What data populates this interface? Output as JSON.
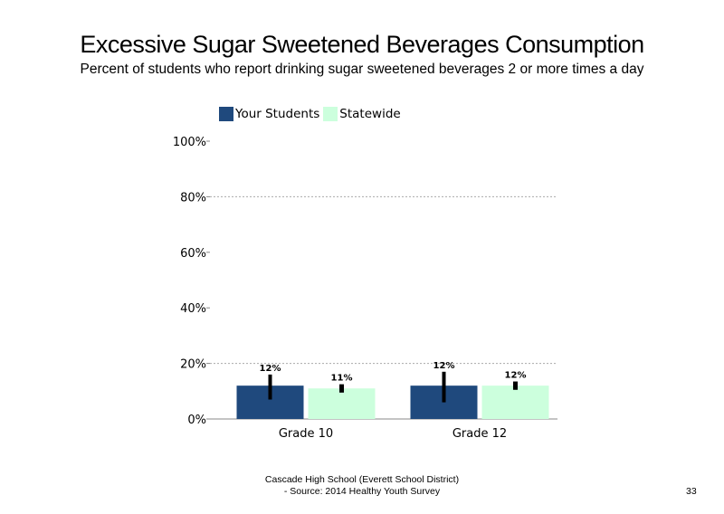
{
  "slide": {
    "title": "Excessive Sugar Sweetened Beverages Consumption",
    "subtitle": "Percent of students who report drinking sugar sweetened beverages 2 or more times a day",
    "footer_line1": "Cascade High School (Everett School District)",
    "footer_line2": "- Source: 2014 Healthy Youth Survey",
    "page_number": "33"
  },
  "chart_data": {
    "type": "bar",
    "categories": [
      "Grade 10",
      "Grade 12"
    ],
    "series": [
      {
        "name": "Your Students",
        "color": "#1f497d",
        "values": [
          12,
          12
        ],
        "labels": [
          "12%",
          "12%"
        ],
        "err_low": [
          7,
          6
        ],
        "err_high": [
          16,
          17
        ]
      },
      {
        "name": "Statewide",
        "color": "#ccffdd",
        "values": [
          11,
          12
        ],
        "labels": [
          "11%",
          "12%"
        ],
        "err_low": [
          9.5,
          10.5
        ],
        "err_high": [
          12.5,
          13.5
        ]
      }
    ],
    "ylim": [
      0,
      100
    ],
    "yticks": [
      0,
      20,
      40,
      60,
      80,
      100
    ],
    "ytick_labels": [
      "0%",
      "20%",
      "40%",
      "60%",
      "80%",
      "100%"
    ],
    "gridlines": [
      20,
      80
    ],
    "legend_position": "top-left"
  }
}
